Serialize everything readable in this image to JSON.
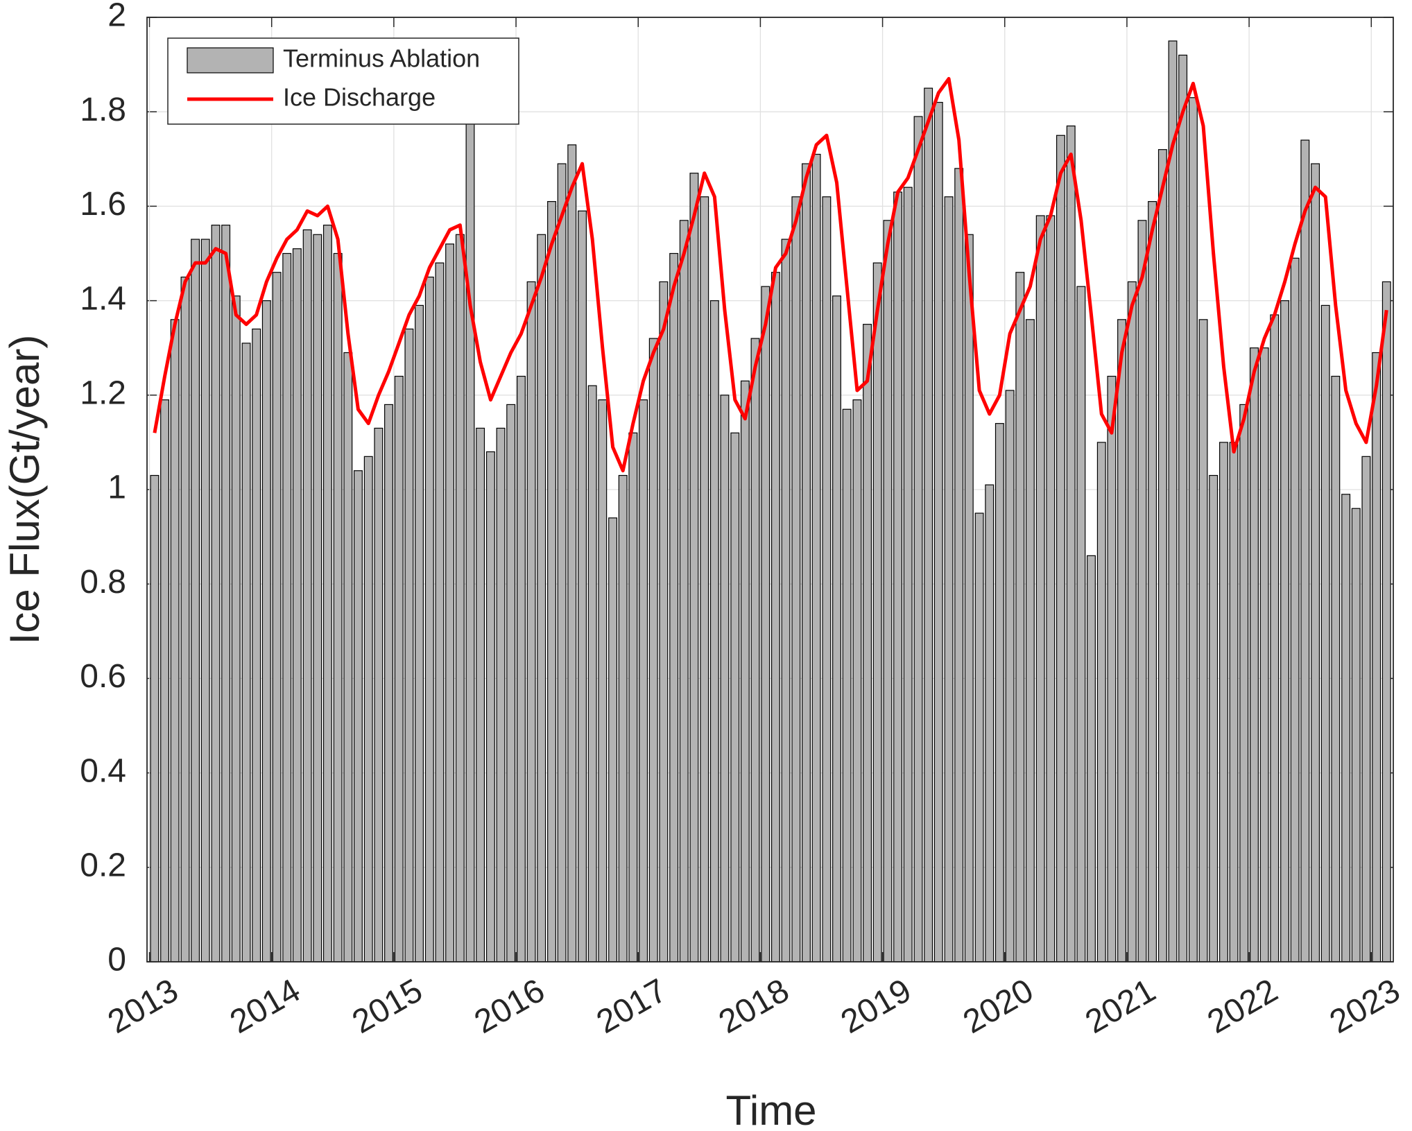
{
  "chart_data": {
    "type": "bar",
    "y_label": "Ice Flux(Gt/year)",
    "x_label": "Time",
    "x": [
      2013.042,
      2013.125,
      2013.208,
      2013.292,
      2013.375,
      2013.458,
      2013.542,
      2013.625,
      2013.708,
      2013.792,
      2013.875,
      2013.958,
      2014.042,
      2014.125,
      2014.208,
      2014.292,
      2014.375,
      2014.458,
      2014.542,
      2014.625,
      2014.708,
      2014.792,
      2014.875,
      2014.958,
      2015.042,
      2015.125,
      2015.208,
      2015.292,
      2015.375,
      2015.458,
      2015.542,
      2015.625,
      2015.708,
      2015.792,
      2015.875,
      2015.958,
      2016.042,
      2016.125,
      2016.208,
      2016.292,
      2016.375,
      2016.458,
      2016.542,
      2016.625,
      2016.708,
      2016.792,
      2016.875,
      2016.958,
      2017.042,
      2017.125,
      2017.208,
      2017.292,
      2017.375,
      2017.458,
      2017.542,
      2017.625,
      2017.708,
      2017.792,
      2017.875,
      2017.958,
      2018.042,
      2018.125,
      2018.208,
      2018.292,
      2018.375,
      2018.458,
      2018.542,
      2018.625,
      2018.708,
      2018.792,
      2018.875,
      2018.958,
      2019.042,
      2019.125,
      2019.208,
      2019.292,
      2019.375,
      2019.458,
      2019.542,
      2019.625,
      2019.708,
      2019.792,
      2019.875,
      2019.958,
      2020.042,
      2020.125,
      2020.208,
      2020.292,
      2020.375,
      2020.458,
      2020.542,
      2020.625,
      2020.708,
      2020.792,
      2020.875,
      2020.958,
      2021.042,
      2021.125,
      2021.208,
      2021.292,
      2021.375,
      2021.458,
      2021.542,
      2021.625,
      2021.708,
      2021.792,
      2021.875,
      2021.958,
      2022.042,
      2022.125,
      2022.208,
      2022.292,
      2022.375,
      2022.458,
      2022.542,
      2022.625,
      2022.708,
      2022.792,
      2022.875,
      2022.958,
      2023.042,
      2023.125
    ],
    "series": [
      {
        "name": "Terminus Ablation",
        "type": "bar",
        "color": "#b3b3b3",
        "values": [
          1.03,
          1.19,
          1.36,
          1.45,
          1.53,
          1.53,
          1.56,
          1.56,
          1.41,
          1.31,
          1.34,
          1.4,
          1.46,
          1.5,
          1.51,
          1.55,
          1.54,
          1.56,
          1.5,
          1.29,
          1.04,
          1.07,
          1.13,
          1.18,
          1.24,
          1.34,
          1.39,
          1.45,
          1.48,
          1.52,
          1.54,
          1.8,
          1.13,
          1.08,
          1.13,
          1.18,
          1.24,
          1.44,
          1.54,
          1.61,
          1.69,
          1.73,
          1.59,
          1.22,
          1.19,
          0.94,
          1.03,
          1.12,
          1.19,
          1.32,
          1.44,
          1.5,
          1.57,
          1.67,
          1.62,
          1.4,
          1.2,
          1.12,
          1.23,
          1.32,
          1.43,
          1.46,
          1.53,
          1.62,
          1.69,
          1.71,
          1.62,
          1.41,
          1.17,
          1.19,
          1.35,
          1.48,
          1.57,
          1.63,
          1.64,
          1.79,
          1.85,
          1.82,
          1.62,
          1.68,
          1.54,
          0.95,
          1.01,
          1.14,
          1.21,
          1.46,
          1.36,
          1.58,
          1.58,
          1.75,
          1.77,
          1.43,
          0.86,
          1.1,
          1.24,
          1.36,
          1.44,
          1.57,
          1.61,
          1.72,
          1.95,
          1.92,
          1.83,
          1.36,
          1.03,
          1.1,
          1.1,
          1.18,
          1.3,
          1.3,
          1.37,
          1.4,
          1.49,
          1.74,
          1.69,
          1.39,
          1.24,
          0.99,
          0.96,
          1.07,
          1.29,
          1.44
        ]
      },
      {
        "name": "Ice Discharge",
        "type": "line",
        "color": "#ff0000",
        "values": [
          1.12,
          1.24,
          1.35,
          1.44,
          1.48,
          1.48,
          1.51,
          1.5,
          1.37,
          1.35,
          1.37,
          1.44,
          1.49,
          1.53,
          1.55,
          1.59,
          1.58,
          1.6,
          1.53,
          1.33,
          1.17,
          1.14,
          1.2,
          1.25,
          1.31,
          1.37,
          1.41,
          1.47,
          1.51,
          1.55,
          1.56,
          1.39,
          1.27,
          1.19,
          1.24,
          1.29,
          1.33,
          1.39,
          1.45,
          1.52,
          1.58,
          1.64,
          1.69,
          1.53,
          1.3,
          1.09,
          1.04,
          1.14,
          1.23,
          1.29,
          1.34,
          1.43,
          1.5,
          1.58,
          1.67,
          1.62,
          1.38,
          1.19,
          1.15,
          1.26,
          1.35,
          1.47,
          1.5,
          1.57,
          1.66,
          1.73,
          1.75,
          1.65,
          1.43,
          1.21,
          1.23,
          1.38,
          1.52,
          1.63,
          1.66,
          1.72,
          1.78,
          1.84,
          1.87,
          1.74,
          1.46,
          1.21,
          1.16,
          1.2,
          1.33,
          1.38,
          1.43,
          1.53,
          1.58,
          1.67,
          1.71,
          1.57,
          1.37,
          1.16,
          1.12,
          1.29,
          1.39,
          1.45,
          1.55,
          1.64,
          1.73,
          1.8,
          1.86,
          1.77,
          1.5,
          1.26,
          1.08,
          1.15,
          1.25,
          1.32,
          1.37,
          1.44,
          1.52,
          1.59,
          1.64,
          1.62,
          1.39,
          1.21,
          1.14,
          1.1,
          1.22,
          1.38
        ]
      }
    ],
    "xlim": [
      2012.98,
      2023.18
    ],
    "xticks": [
      2013,
      2014,
      2015,
      2016,
      2017,
      2018,
      2019,
      2020,
      2021,
      2022,
      2023
    ],
    "ylim": [
      0,
      2
    ],
    "yticks": [
      0,
      0.2,
      0.4,
      0.6,
      0.8,
      1,
      1.2,
      1.4,
      1.6,
      1.8,
      2
    ],
    "grid": true,
    "legend": "northwest"
  }
}
